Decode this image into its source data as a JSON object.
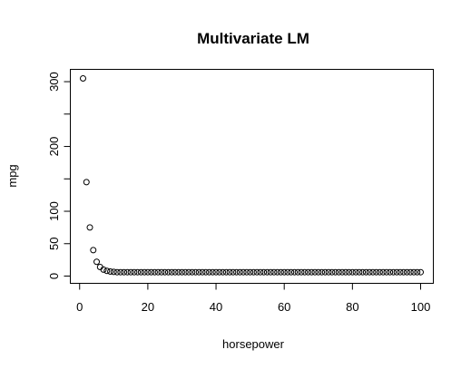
{
  "chart_data": {
    "type": "scatter",
    "title": "Multivariate LM",
    "xlabel": "horsepower",
    "ylabel": "mpg",
    "xlim": [
      1,
      100
    ],
    "ylim": [
      0,
      305
    ],
    "xticks": [
      0,
      20,
      40,
      60,
      80,
      100
    ],
    "yticks": [
      0,
      50,
      100,
      200,
      300
    ],
    "grid": false,
    "series": [
      {
        "x": [
          1,
          2,
          3,
          4,
          5,
          6,
          7,
          8,
          9,
          10,
          11,
          12,
          13,
          14,
          15,
          16,
          17,
          18,
          19,
          20,
          21,
          22,
          23,
          24,
          25,
          26,
          27,
          28,
          29,
          30,
          31,
          32,
          33,
          34,
          35,
          36,
          37,
          38,
          39,
          40,
          41,
          42,
          43,
          44,
          45,
          46,
          47,
          48,
          49,
          50,
          51,
          52,
          53,
          54,
          55,
          56,
          57,
          58,
          59,
          60,
          61,
          62,
          63,
          64,
          65,
          66,
          67,
          68,
          69,
          70,
          71,
          72,
          73,
          74,
          75,
          76,
          77,
          78,
          79,
          80,
          81,
          82,
          83,
          84,
          85,
          86,
          87,
          88,
          89,
          90,
          91,
          92,
          93,
          94,
          95,
          96,
          97,
          98,
          99,
          100
        ],
        "y": [
          305,
          145,
          75,
          40,
          22,
          14,
          10,
          8,
          7,
          6.5,
          6,
          6,
          6,
          6,
          6,
          6,
          6,
          6,
          6,
          6,
          6,
          6,
          6,
          6,
          6,
          6,
          6,
          6,
          6,
          6,
          6,
          6,
          6,
          6,
          6,
          6,
          6,
          6,
          6,
          6,
          6,
          6,
          6,
          6,
          6,
          6,
          6,
          6,
          6,
          6,
          6,
          6,
          6,
          6,
          6,
          6,
          6,
          6,
          6,
          6,
          6,
          6,
          6,
          6,
          6,
          6,
          6,
          6,
          6,
          6,
          6,
          6,
          6,
          6,
          6,
          6,
          6,
          6,
          6,
          6,
          6,
          6,
          6,
          6,
          6,
          6,
          6,
          6,
          6,
          6,
          6,
          6,
          6,
          6,
          6,
          6,
          6,
          6,
          6,
          6
        ]
      }
    ]
  }
}
